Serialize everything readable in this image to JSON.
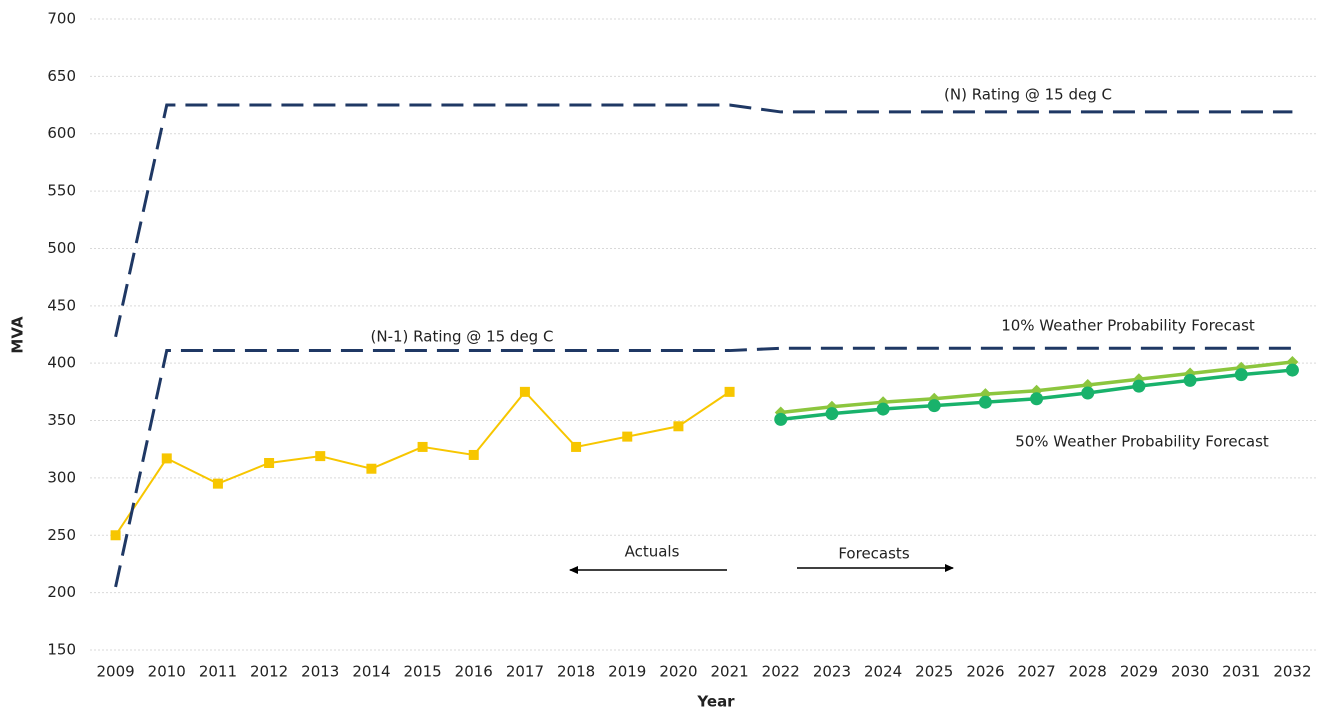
{
  "chart_data": {
    "type": "line",
    "x_label": "Year",
    "y_label": "MVA",
    "categories": [
      "2009",
      "2010",
      "2011",
      "2012",
      "2013",
      "2014",
      "2015",
      "2016",
      "2017",
      "2018",
      "2019",
      "2020",
      "2021",
      "2022",
      "2023",
      "2024",
      "2025",
      "2026",
      "2027",
      "2028",
      "2029",
      "2030",
      "2031",
      "2032"
    ],
    "series": [
      {
        "color": "#f7c600",
        "style": "solid",
        "marker": "square",
        "values": [
          250,
          317,
          295,
          313,
          319,
          308,
          327,
          320,
          375,
          327,
          336,
          345,
          375,
          null,
          null,
          null,
          null,
          null,
          null,
          null,
          null,
          null,
          null,
          null
        ]
      },
      {
        "name": "(N) Rating @ 15 deg C",
        "color": "#1f3864",
        "style": "dashed",
        "marker": "none",
        "values": [
          423,
          625,
          625,
          625,
          625,
          625,
          625,
          625,
          625,
          625,
          625,
          625,
          625,
          619,
          619,
          619,
          619,
          619,
          619,
          619,
          619,
          619,
          619,
          619
        ]
      },
      {
        "name": "(N-1) Rating @ 15 deg C",
        "color": "#1f3864",
        "style": "dashed",
        "marker": "none",
        "values": [
          205,
          411,
          411,
          411,
          411,
          411,
          411,
          411,
          411,
          411,
          411,
          411,
          411,
          413,
          413,
          413,
          413,
          413,
          413,
          413,
          413,
          413,
          413,
          413
        ]
      },
      {
        "name": "10% Weather Probability Forecast",
        "color": "#8cc63e",
        "style": "solid",
        "marker": "diamond",
        "values": [
          null,
          null,
          null,
          null,
          null,
          null,
          null,
          null,
          null,
          null,
          null,
          null,
          null,
          357,
          362,
          366,
          369,
          373,
          376,
          381,
          386,
          391,
          396,
          401
        ]
      },
      {
        "name": "50% Weather Probability Forecast",
        "color": "#19b26b",
        "style": "solid",
        "marker": "circle",
        "values": [
          null,
          null,
          null,
          null,
          null,
          null,
          null,
          null,
          null,
          null,
          null,
          null,
          null,
          351,
          356,
          360,
          363,
          366,
          369,
          374,
          380,
          385,
          390,
          394
        ]
      }
    ],
    "annotations": [
      "Actuals",
      "Forecasts"
    ],
    "ylim": [
      150,
      700
    ],
    "yticks": [
      150,
      200,
      250,
      300,
      350,
      400,
      450,
      500,
      550,
      600,
      650,
      700
    ],
    "grid": true
  }
}
